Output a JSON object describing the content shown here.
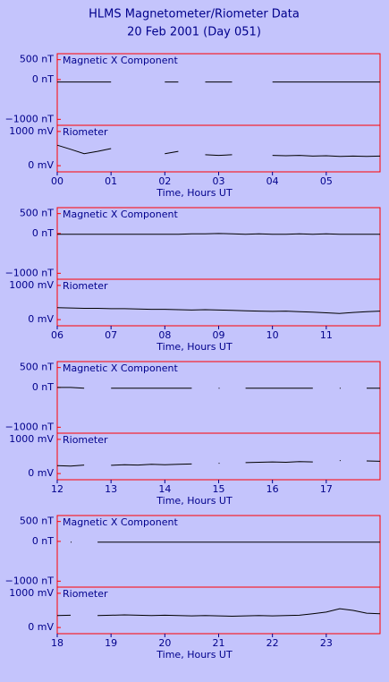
{
  "title": "HLMS Magnetometer/Riometer Data",
  "subtitle": "20 Feb 2001 (Day 051)",
  "chart_data": [
    {
      "type": "line",
      "label": "Magnetic X Component",
      "color": "#000000",
      "xlim": [
        0,
        6
      ],
      "ylim": [
        -1150,
        650
      ],
      "yticks": [
        {
          "value": 500,
          "label": "500 nT"
        },
        {
          "value": 0,
          "label": "0 nT"
        },
        {
          "value": -1000,
          "label": "−1000 nT"
        }
      ],
      "x": [
        0,
        0.25,
        0.5,
        0.75,
        1,
        1.25,
        1.5,
        1.75,
        2,
        2.25,
        2.5,
        2.75,
        3,
        3.25,
        3.5,
        3.75,
        4,
        4.25,
        4.5,
        4.75,
        5,
        5.25,
        5.5,
        5.75,
        6
      ],
      "values": [
        -60,
        -60,
        -60,
        -60,
        -60,
        null,
        null,
        null,
        -60,
        -60,
        null,
        -60,
        -60,
        -60,
        null,
        null,
        -60,
        -60,
        -60,
        -60,
        -60,
        -60,
        -60,
        -60,
        -60
      ]
    },
    {
      "type": "line",
      "label": "Riometer",
      "color": "#000000",
      "xlim": [
        0,
        6
      ],
      "ylim": [
        -180,
        1180
      ],
      "yticks": [
        {
          "value": 1000,
          "label": "1000 mV"
        },
        {
          "value": 0,
          "label": "0 mV"
        }
      ],
      "xticks": [
        {
          "value": 0,
          "label": "00"
        },
        {
          "value": 1,
          "label": "01"
        },
        {
          "value": 2,
          "label": "02"
        },
        {
          "value": 3,
          "label": "03"
        },
        {
          "value": 4,
          "label": "04"
        },
        {
          "value": 5,
          "label": "05"
        }
      ],
      "xlabel": "Time, Hours UT",
      "x": [
        0,
        0.25,
        0.5,
        0.75,
        1,
        1.25,
        1.5,
        1.75,
        2,
        2.25,
        2.5,
        2.75,
        3,
        3.25,
        3.5,
        3.75,
        4,
        4.25,
        4.5,
        4.75,
        5,
        5.25,
        5.5,
        5.75,
        6
      ],
      "values": [
        600,
        480,
        350,
        420,
        500,
        null,
        null,
        null,
        350,
        420,
        null,
        320,
        300,
        320,
        null,
        null,
        300,
        290,
        300,
        280,
        290,
        270,
        280,
        270,
        280
      ]
    },
    {
      "type": "line",
      "label": "Magnetic X Component",
      "color": "#000000",
      "xlim": [
        6,
        12
      ],
      "ylim": [
        -1150,
        650
      ],
      "yticks": [
        {
          "value": 500,
          "label": "500 nT"
        },
        {
          "value": 0,
          "label": "0 nT"
        },
        {
          "value": -1000,
          "label": "−1000 nT"
        }
      ],
      "x": [
        6,
        6.25,
        6.5,
        6.75,
        7,
        7.25,
        7.5,
        7.75,
        8,
        8.25,
        8.5,
        8.75,
        9,
        9.25,
        9.5,
        9.75,
        10,
        10.25,
        10.5,
        10.75,
        11,
        11.25,
        11.5,
        11.75,
        12
      ],
      "values": [
        -20,
        -20,
        -20,
        -20,
        -20,
        -20,
        -20,
        -20,
        -20,
        -20,
        -10,
        -10,
        0,
        -10,
        -20,
        -10,
        -20,
        -20,
        -10,
        -20,
        -10,
        -20,
        -20,
        -20,
        -20
      ]
    },
    {
      "type": "line",
      "label": "Riometer",
      "color": "#000000",
      "xlim": [
        6,
        12
      ],
      "ylim": [
        -180,
        1180
      ],
      "yticks": [
        {
          "value": 1000,
          "label": "1000 mV"
        },
        {
          "value": 0,
          "label": "0 mV"
        }
      ],
      "xticks": [
        {
          "value": 6,
          "label": "06"
        },
        {
          "value": 7,
          "label": "07"
        },
        {
          "value": 8,
          "label": "08"
        },
        {
          "value": 9,
          "label": "09"
        },
        10,
        11
      ],
      "xlabel": "Time, Hours UT",
      "x": [
        6,
        6.25,
        6.5,
        6.75,
        7,
        7.25,
        7.5,
        7.75,
        8,
        8.25,
        8.5,
        8.75,
        9,
        9.25,
        9.5,
        9.75,
        10,
        10.25,
        10.5,
        10.75,
        11,
        11.25,
        11.5,
        11.75,
        12
      ],
      "values": [
        350,
        340,
        330,
        330,
        320,
        320,
        310,
        300,
        300,
        290,
        280,
        290,
        280,
        270,
        260,
        250,
        240,
        250,
        230,
        220,
        200,
        180,
        210,
        230,
        250
      ]
    },
    {
      "type": "line",
      "label": "Magnetic X Component",
      "color": "#000000",
      "xlim": [
        12,
        18
      ],
      "ylim": [
        -1150,
        650
      ],
      "yticks": [
        {
          "value": 500,
          "label": "500 nT"
        },
        {
          "value": 0,
          "label": "0 nT"
        },
        {
          "value": -1000,
          "label": "−1000 nT"
        }
      ],
      "x": [
        12,
        12.25,
        12.5,
        12.75,
        13,
        13.25,
        13.5,
        13.75,
        14,
        14.25,
        14.5,
        14.75,
        15,
        15.25,
        15.5,
        15.75,
        16,
        16.25,
        16.5,
        16.75,
        17,
        17.25,
        17.5,
        17.75,
        18
      ],
      "values": [
        0,
        0,
        -20,
        null,
        -20,
        -20,
        -20,
        -20,
        -20,
        -20,
        -20,
        null,
        -20,
        null,
        -20,
        -20,
        -20,
        -20,
        -20,
        -20,
        null,
        -20,
        null,
        -20,
        -20
      ]
    },
    {
      "type": "line",
      "label": "Riometer",
      "color": "#000000",
      "xlim": [
        12,
        18
      ],
      "ylim": [
        -180,
        1180
      ],
      "yticks": [
        {
          "value": 1000,
          "label": "1000 mV"
        },
        {
          "value": 0,
          "label": "0 mV"
        }
      ],
      "xticks": [
        12,
        13,
        14,
        15,
        16,
        17
      ],
      "xlabel": "Time, Hours UT",
      "x": [
        12,
        12.25,
        12.5,
        12.75,
        13,
        13.25,
        13.5,
        13.75,
        14,
        14.25,
        14.5,
        14.75,
        15,
        15.25,
        15.5,
        15.75,
        16,
        16.25,
        16.5,
        16.75,
        17,
        17.25,
        17.5,
        17.75,
        18
      ],
      "values": [
        230,
        220,
        250,
        null,
        240,
        260,
        250,
        270,
        260,
        270,
        280,
        null,
        300,
        null,
        320,
        330,
        340,
        330,
        350,
        340,
        null,
        380,
        null,
        370,
        360
      ]
    },
    {
      "type": "line",
      "label": "Magnetic X Component",
      "color": "#000000",
      "xlim": [
        18,
        24
      ],
      "ylim": [
        -1150,
        650
      ],
      "yticks": [
        {
          "value": 500,
          "label": "500 nT"
        },
        {
          "value": 0,
          "label": "0 nT"
        },
        {
          "value": -1000,
          "label": "−1000 nT"
        }
      ],
      "x": [
        18,
        18.25,
        18.5,
        18.75,
        19,
        19.25,
        19.5,
        19.75,
        20,
        20.25,
        20.5,
        20.75,
        21,
        21.25,
        21.5,
        21.75,
        22,
        22.25,
        22.5,
        22.75,
        23,
        23.25,
        23.5,
        23.75,
        24
      ],
      "values": [
        null,
        -20,
        null,
        -20,
        -20,
        -20,
        -20,
        -20,
        -20,
        -20,
        -20,
        -20,
        -20,
        -20,
        -20,
        -20,
        -20,
        -20,
        -20,
        -20,
        -20,
        -20,
        -20,
        -20,
        -20
      ]
    },
    {
      "type": "line",
      "label": "Riometer",
      "color": "#000000",
      "xlim": [
        18,
        24
      ],
      "ylim": [
        -180,
        1180
      ],
      "yticks": [
        {
          "value": 1000,
          "label": "1000 mV"
        },
        {
          "value": 0,
          "label": "0 mV"
        }
      ],
      "xticks": [
        18,
        19,
        20,
        21,
        22,
        23
      ],
      "xlabel": "Time, Hours UT",
      "x": [
        18,
        18.25,
        18.5,
        18.75,
        19,
        19.25,
        19.5,
        19.75,
        20,
        20.25,
        20.5,
        20.75,
        21,
        21.25,
        21.5,
        21.75,
        22,
        22.25,
        22.5,
        22.75,
        23,
        23.25,
        23.5,
        23.75,
        24
      ],
      "values": [
        350,
        360,
        null,
        350,
        360,
        370,
        360,
        350,
        360,
        350,
        340,
        350,
        340,
        330,
        340,
        350,
        340,
        350,
        360,
        400,
        450,
        550,
        500,
        420,
        400
      ]
    }
  ]
}
